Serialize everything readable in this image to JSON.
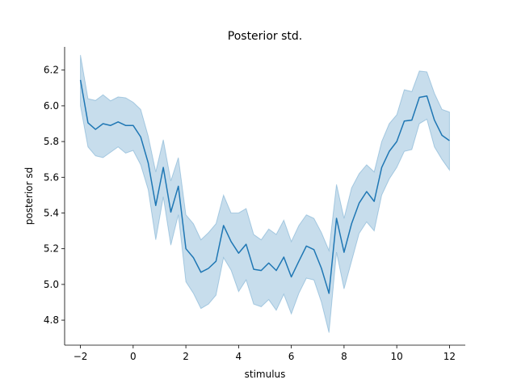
{
  "chart_data": {
    "type": "line",
    "title": "Posterior std.",
    "xlabel": "stimulus",
    "ylabel": "posterior sd",
    "xlim": [
      -2.6,
      12.6
    ],
    "ylim": [
      4.66,
      6.33
    ],
    "xticks": [
      -2,
      0,
      2,
      4,
      6,
      8,
      10,
      12
    ],
    "xtick_labels": [
      "−2",
      "0",
      "2",
      "4",
      "6",
      "8",
      "10",
      "12"
    ],
    "yticks": [
      4.8,
      5.0,
      5.2,
      5.4,
      5.6,
      5.8,
      6.0,
      6.2
    ],
    "ytick_labels": [
      "4.8",
      "5.0",
      "5.2",
      "5.4",
      "5.6",
      "5.8",
      "6.0",
      "6.2"
    ],
    "grid": false,
    "colors": {
      "line": "#1f77b4",
      "band": "#1f77b4"
    },
    "band_opacity": 0.25,
    "series": [
      {
        "x": [
          -2.0,
          -1.7143,
          -1.4286,
          -1.1429,
          -0.8571,
          -0.5714,
          -0.2857,
          0.0,
          0.2857,
          0.5714,
          0.8571,
          1.1429,
          1.4286,
          1.7143,
          2.0,
          2.2857,
          2.5714,
          2.8571,
          3.1429,
          3.4286,
          3.7143,
          4.0,
          4.2857,
          4.5714,
          4.8571,
          5.1429,
          5.4286,
          5.7143,
          6.0,
          6.2857,
          6.5714,
          6.8571,
          7.1429,
          7.4286,
          7.7143,
          8.0,
          8.2857,
          8.5714,
          8.8571,
          9.1429,
          9.4286,
          9.7143,
          10.0,
          10.2857,
          10.5714,
          10.8571,
          11.1429,
          11.4286,
          11.7143,
          12.0
        ],
        "mean": [
          6.145,
          5.905,
          5.868,
          5.9,
          5.89,
          5.91,
          5.89,
          5.89,
          5.826,
          5.68,
          5.442,
          5.655,
          5.405,
          5.55,
          5.2,
          5.15,
          5.068,
          5.09,
          5.13,
          5.33,
          5.24,
          5.175,
          5.225,
          5.085,
          5.078,
          5.12,
          5.078,
          5.153,
          5.042,
          5.13,
          5.215,
          5.195,
          5.09,
          4.95,
          5.37,
          5.18,
          5.34,
          5.455,
          5.52,
          5.465,
          5.655,
          5.745,
          5.8,
          5.915,
          5.92,
          6.047,
          6.055,
          5.92,
          5.835,
          5.805
        ],
        "upper": [
          6.285,
          6.04,
          6.03,
          6.062,
          6.028,
          6.05,
          6.045,
          6.02,
          5.98,
          5.83,
          5.63,
          5.81,
          5.58,
          5.71,
          5.39,
          5.34,
          5.25,
          5.29,
          5.34,
          5.5,
          5.4,
          5.4,
          5.425,
          5.28,
          5.25,
          5.31,
          5.28,
          5.36,
          5.24,
          5.33,
          5.39,
          5.37,
          5.29,
          5.19,
          5.56,
          5.37,
          5.54,
          5.62,
          5.67,
          5.63,
          5.8,
          5.9,
          5.95,
          6.09,
          6.08,
          6.195,
          6.19,
          6.07,
          5.98,
          5.965
        ],
        "lower": [
          6.0,
          5.77,
          5.72,
          5.71,
          5.74,
          5.77,
          5.735,
          5.75,
          5.67,
          5.53,
          5.25,
          5.49,
          5.22,
          5.39,
          5.015,
          4.95,
          4.865,
          4.89,
          4.94,
          5.15,
          5.08,
          4.96,
          5.025,
          4.89,
          4.875,
          4.915,
          4.855,
          4.945,
          4.835,
          4.95,
          5.035,
          5.025,
          4.9,
          4.73,
          5.18,
          4.975,
          5.13,
          5.285,
          5.35,
          5.3,
          5.5,
          5.59,
          5.655,
          5.745,
          5.755,
          5.9,
          5.925,
          5.77,
          5.7,
          5.64
        ]
      }
    ]
  }
}
